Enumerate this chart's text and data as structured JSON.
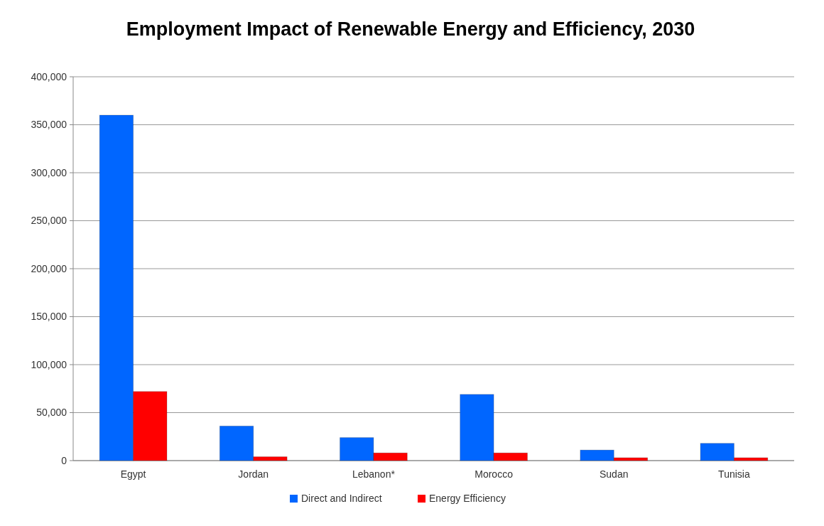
{
  "chart_data": {
    "type": "bar",
    "title": "Employment Impact of Renewable Energy and Efficiency, 2030",
    "categories": [
      "Egypt",
      "Jordan",
      "Lebanon*",
      "Morocco",
      "Sudan",
      "Tunisia"
    ],
    "series": [
      {
        "name": "Direct and Indirect",
        "color": "#0066ff",
        "values": [
          360000,
          36000,
          24000,
          69000,
          11000,
          18000
        ]
      },
      {
        "name": "Energy Efficiency",
        "color": "#ff0000",
        "values": [
          72000,
          4000,
          8000,
          8000,
          3000,
          3000
        ]
      }
    ],
    "ylim": [
      0,
      400000
    ],
    "yticks": [
      {
        "value": 0,
        "label": "0"
      },
      {
        "value": 50000,
        "label": "50,000"
      },
      {
        "value": 100000,
        "label": "100,000"
      },
      {
        "value": 150000,
        "label": "150,000"
      },
      {
        "value": 200000,
        "label": "200,000"
      },
      {
        "value": 250000,
        "label": "250,000"
      },
      {
        "value": 300000,
        "label": "300,000"
      },
      {
        "value": 350000,
        "label": "350,000"
      },
      {
        "value": 400000,
        "label": "400,000"
      }
    ],
    "grid": "y",
    "legend": "bottom"
  }
}
